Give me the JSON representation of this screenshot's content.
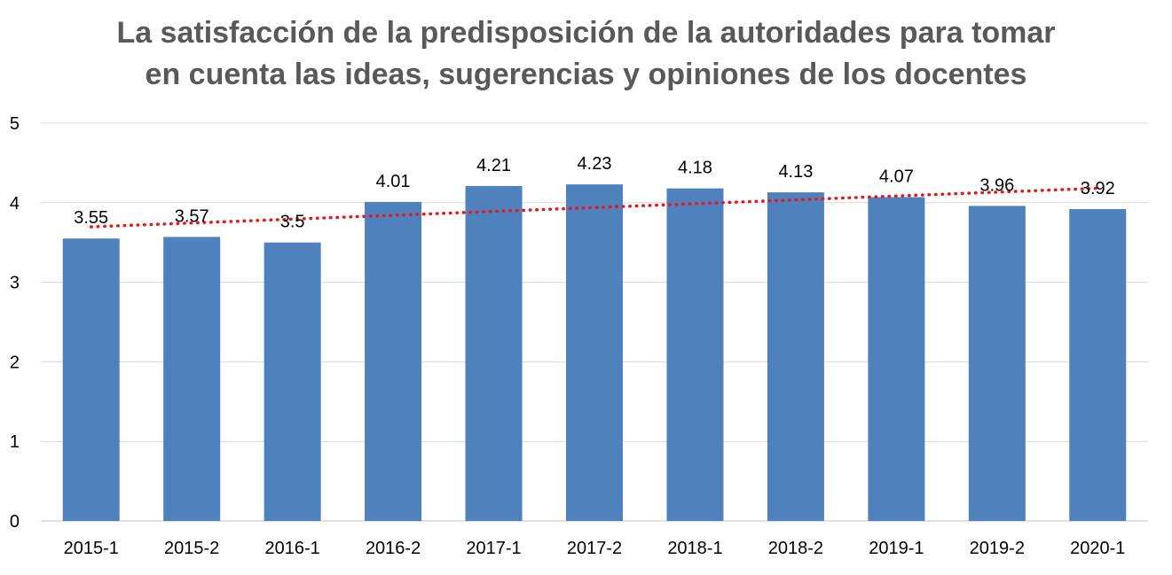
{
  "chart_data": {
    "type": "bar",
    "title_lines": [
      "La satisfacción de la predisposición de la autoridades para tomar",
      "en cuenta las ideas, sugerencias y opiniones de los docentes"
    ],
    "categories": [
      "2015-1",
      "2015-2",
      "2016-1",
      "2016-2",
      "2017-1",
      "2017-2",
      "2018-1",
      "2018-2",
      "2019-1",
      "2019-2",
      "2020-1"
    ],
    "values": [
      3.55,
      3.57,
      3.5,
      4.01,
      4.21,
      4.23,
      4.18,
      4.13,
      4.07,
      3.96,
      3.92
    ],
    "value_labels": [
      "3.55",
      "3.57",
      "3.5",
      "4.01",
      "4.21",
      "4.23",
      "4.18",
      "4.13",
      "4.07",
      "3.96",
      "3.92"
    ],
    "y_ticks": [
      "0",
      "1",
      "2",
      "3",
      "4",
      "5"
    ],
    "ylim": [
      0,
      5
    ],
    "grid": true,
    "legend": "none",
    "trendline": {
      "type": "linear",
      "style": "dotted"
    },
    "colors": {
      "bar": "#4f81bd",
      "trendline": "#e31a1c",
      "grid": "#d9d9d9",
      "title": "#595959"
    }
  }
}
